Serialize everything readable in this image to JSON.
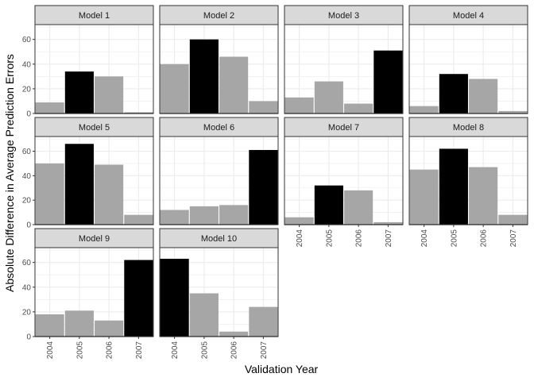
{
  "chart_data": {
    "type": "bar",
    "layout": "facet-grid",
    "xlabel": "Validation Year",
    "ylabel": "Absolute Difference in Average Prediction Errors",
    "categories": [
      "2004",
      "2005",
      "2006",
      "2007"
    ],
    "ylim": [
      0,
      72
    ],
    "yticks": [
      0,
      20,
      40,
      60
    ],
    "grid": true,
    "colors": {
      "bar_default": "#a6a6a6",
      "bar_highlight": "#000000",
      "strip_fill": "#d9d9d9",
      "panel_border": "#333333",
      "grid": "#ebebeb"
    },
    "panels": [
      {
        "title": "Model 1",
        "values": [
          9,
          34,
          30,
          1
        ],
        "highlight": "2005"
      },
      {
        "title": "Model 2",
        "values": [
          40,
          60,
          46,
          10
        ],
        "highlight": "2005"
      },
      {
        "title": "Model 3",
        "values": [
          13,
          26,
          8,
          51
        ],
        "highlight": "2007"
      },
      {
        "title": "Model 4",
        "values": [
          6,
          32,
          28,
          2
        ],
        "highlight": "2005"
      },
      {
        "title": "Model 5",
        "values": [
          50,
          66,
          49,
          8
        ],
        "highlight": "2005"
      },
      {
        "title": "Model 6",
        "values": [
          12,
          15,
          16,
          61
        ],
        "highlight": "2007"
      },
      {
        "title": "Model 7",
        "values": [
          6,
          32,
          28,
          2
        ],
        "highlight": "2005"
      },
      {
        "title": "Model 8",
        "values": [
          45,
          62,
          47,
          8
        ],
        "highlight": "2005"
      },
      {
        "title": "Model 9",
        "values": [
          18,
          21,
          13,
          62
        ],
        "highlight": "2007"
      },
      {
        "title": "Model 10",
        "values": [
          63,
          35,
          4,
          24
        ],
        "highlight": "2004"
      }
    ]
  }
}
